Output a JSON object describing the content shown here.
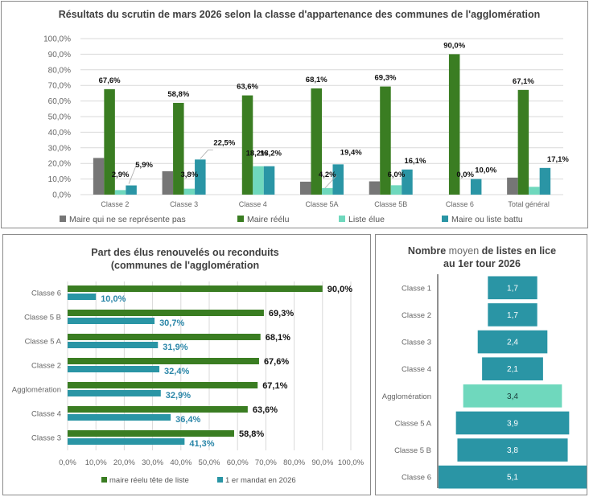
{
  "colors": {
    "gray": "#767676",
    "green": "#3a7d22",
    "mint": "#6fd8bd",
    "teal": "#2a95a5",
    "teal_label": "#2a86a8"
  },
  "chart_data": [
    {
      "id": "results",
      "type": "bar",
      "title": "Résultats du scrutin de mars 2026 selon la classe d'appartenance des communes de l'agglomération",
      "xlabel": "",
      "ylabel": "",
      "ylim": [
        0,
        100
      ],
      "yticks": [
        "0,0%",
        "10,0%",
        "20,0%",
        "30,0%",
        "40,0%",
        "50,0%",
        "60,0%",
        "70,0%",
        "80,0%",
        "90,0%",
        "100,0%"
      ],
      "grid": true,
      "legend_position": "bottom",
      "categories": [
        "Classe 2",
        "Classe 3",
        "Classe 4",
        "Classe 5A",
        "Classe 5B",
        "Classe 6",
        "Total général"
      ],
      "series": [
        {
          "name": "Maire qui ne se représente pas",
          "color": "#767676",
          "values": [
            23.5,
            15.0,
            0.0,
            8.3,
            8.5,
            0.0,
            10.9
          ],
          "labels": [
            null,
            null,
            null,
            null,
            null,
            null,
            null
          ]
        },
        {
          "name": "Maire réélu",
          "color": "#3a7d22",
          "values": [
            67.6,
            58.8,
            63.6,
            68.1,
            69.3,
            90.0,
            67.1
          ],
          "labels": [
            "67,6%",
            "58,8%",
            "63,6%",
            "68,1%",
            "69,3%",
            "90,0%",
            "67,1%"
          ]
        },
        {
          "name": "Liste élue",
          "color": "#6fd8bd",
          "values": [
            2.9,
            3.8,
            18.2,
            4.2,
            6.0,
            0.0,
            5.0
          ],
          "labels": [
            "2,9%",
            "3,8%",
            "18,2%",
            "4,2%",
            "6,0%",
            "0,0%",
            null
          ]
        },
        {
          "name": "Maire ou liste battu",
          "color": "#2a95a5",
          "values": [
            5.9,
            22.5,
            18.2,
            19.4,
            16.1,
            10.0,
            17.1
          ],
          "labels": [
            "5,9%",
            "22,5%",
            "18,2%",
            "19,4%",
            "16,1%",
            "10,0%",
            "17,1%"
          ]
        }
      ]
    },
    {
      "id": "renewal",
      "type": "bar",
      "orientation": "horizontal",
      "title": [
        "Part des élus renouvelés ou reconduits",
        "(communes de l'agglomération"
      ],
      "xlim": [
        0,
        100
      ],
      "xticks": [
        "0,0%",
        "10,0%",
        "20,0%",
        "30,0%",
        "40,0%",
        "50,0%",
        "60,0%",
        "70,0%",
        "80,0%",
        "90,0%",
        "100,0%"
      ],
      "grid": true,
      "legend_position": "bottom",
      "categories": [
        "Classe 6",
        "Classe 5 B",
        "Classe 5 A",
        "Classe 2",
        "Agglomération",
        "Classe 4",
        "Classe 3"
      ],
      "series": [
        {
          "name": "maire réelu tête de liste",
          "color": "#3a7d22",
          "values": [
            90.0,
            69.3,
            68.1,
            67.6,
            67.1,
            63.6,
            58.8
          ],
          "labels": [
            "90,0%",
            "69,3%",
            "68,1%",
            "67,6%",
            "67,1%",
            "63,6%",
            "58,8%"
          ]
        },
        {
          "name": "1 er mandat en 2026",
          "color": "#2a95a5",
          "values": [
            10.0,
            30.7,
            31.9,
            32.4,
            32.9,
            36.4,
            41.3
          ],
          "labels": [
            "10,0%",
            "30,7%",
            "31,9%",
            "32,4%",
            "32,9%",
            "36,4%",
            "41,3%"
          ]
        }
      ]
    },
    {
      "id": "lists",
      "type": "bar",
      "orientation": "horizontal-centered",
      "title": {
        "part1": "Nombre",
        "part2": "moyen",
        "part3": "de listes en lice",
        "line2": "au 1er tour 2026"
      },
      "xlim": [
        0,
        5.1
      ],
      "categories": [
        "Classe 1",
        "Classe 2",
        "Classe 3",
        "Classe 4",
        "Agglomération",
        "Classe 5 A",
        "Classe 5 B",
        "Classe 6"
      ],
      "values": [
        1.7,
        1.7,
        2.4,
        2.1,
        3.4,
        3.9,
        3.8,
        5.1
      ],
      "labels": [
        "1,7",
        "1,7",
        "2,4",
        "2,1",
        "3,4",
        "3,9",
        "3,8",
        "5,1"
      ],
      "highlight_index": 4
    }
  ]
}
